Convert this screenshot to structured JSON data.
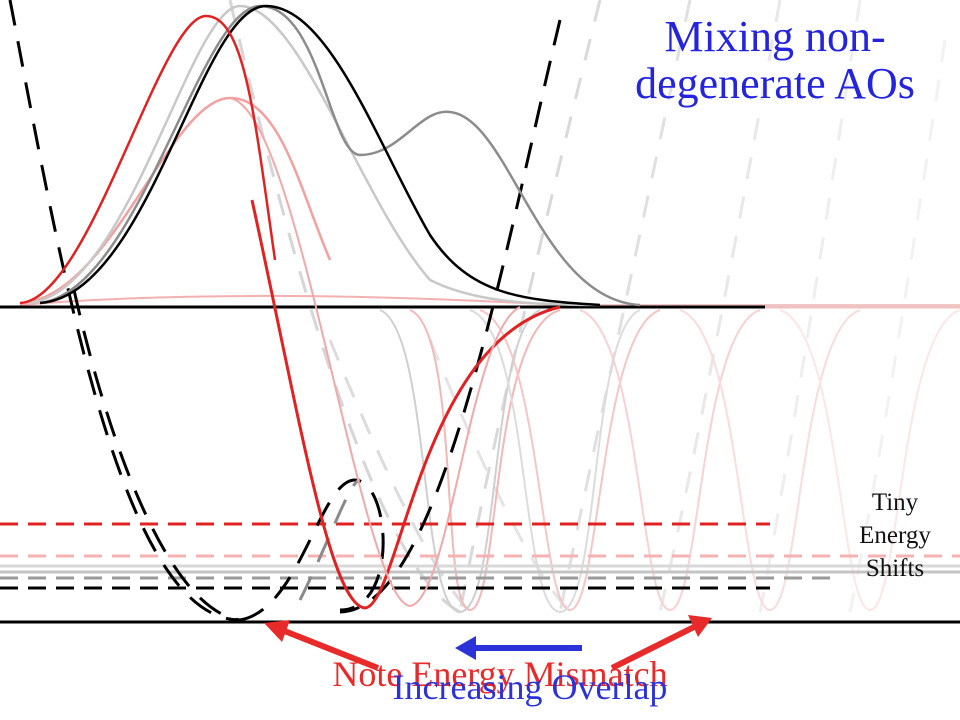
{
  "title": "Mixing non-degenerate AOs",
  "side_note": "Tiny Energy Shifts",
  "caption_energy": "Note Energy Mismatch",
  "caption_overlap": "Increasing Overlap",
  "colors": {
    "title": "#2323e0",
    "caption_energy": "#e82a2a",
    "caption_overlap": "#2b33d8",
    "red_curve": "#e02222",
    "black_curve": "#000000"
  }
}
